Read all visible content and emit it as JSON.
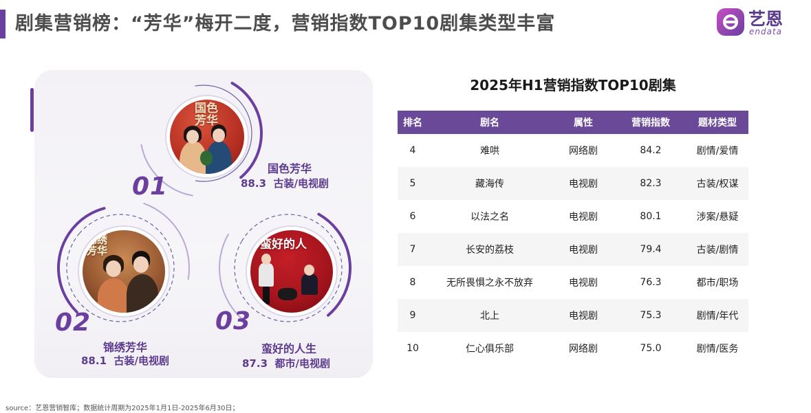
{
  "header": {
    "title": "剧集营销榜：“芳华”梅开二度，营销指数TOP10剧集类型丰富",
    "logo_cn": "艺恩",
    "logo_en": "endata"
  },
  "top3": [
    {
      "rank": "01",
      "name": "国色芳华",
      "score": "88.3",
      "genre": "古装/电视剧",
      "poster_text": "国色芳华"
    },
    {
      "rank": "02",
      "name": "锦绣芳华",
      "score": "88.1",
      "genre": "古装/电视剧",
      "poster_text": "锦绣芳华"
    },
    {
      "rank": "03",
      "name": "蛮好的人生",
      "score": "87.3",
      "genre": "都市/电视剧",
      "poster_text": "蛮好的人"
    }
  ],
  "table": {
    "title": "2025年H1营销指数TOP10剧集",
    "columns": [
      "排名",
      "剧名",
      "属性",
      "营销指数",
      "题材类型"
    ],
    "rows": [
      [
        "4",
        "难哄",
        "网络剧",
        "84.2",
        "剧情/爱情"
      ],
      [
        "5",
        "藏海传",
        "电视剧",
        "82.3",
        "古装/权谋"
      ],
      [
        "6",
        "以法之名",
        "电视剧",
        "80.1",
        "涉案/悬疑"
      ],
      [
        "7",
        "长安的荔枝",
        "电视剧",
        "79.4",
        "古装/剧情"
      ],
      [
        "8",
        "无所畏惧之永不放弃",
        "电视剧",
        "76.3",
        "都市/职场"
      ],
      [
        "9",
        "北上",
        "电视剧",
        "75.3",
        "剧情/年代"
      ],
      [
        "10",
        "仁心俱乐部",
        "网络剧",
        "75.0",
        "剧情/医务"
      ]
    ]
  },
  "source": "source：艺恩营销智库；数据统计周期为2025年1月1日-2025年6月30日；",
  "colors": {
    "accent": "#6a3fa0",
    "header_row": "#6a4a98",
    "brand_text": "#5c3a8e"
  }
}
